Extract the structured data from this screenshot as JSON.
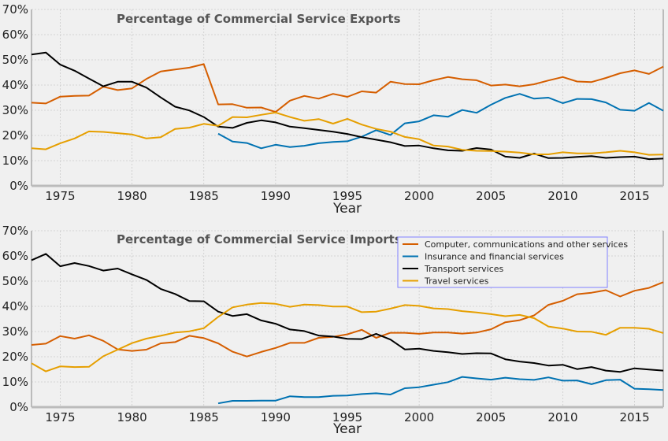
{
  "colors": {
    "computer": "#d55e00",
    "insurance": "#0072b2",
    "transport": "#000000",
    "travel": "#e69f00",
    "background": "#f0f0f0",
    "grid": "#cbcbcb",
    "legend_border": "#8080ff"
  },
  "chart_data": [
    {
      "type": "line",
      "title": "Percentage of Commercial Service Exports",
      "xlabel": "Year",
      "ylabel": "",
      "xlim": [
        1973,
        2017
      ],
      "ylim": [
        0,
        70
      ],
      "xticks": [
        1975,
        1980,
        1985,
        1990,
        1995,
        2000,
        2005,
        2010,
        2015
      ],
      "yticks": [
        0,
        10,
        20,
        30,
        40,
        50,
        60,
        70
      ],
      "ytick_labels": [
        "0%",
        "10%",
        "20%",
        "30%",
        "40%",
        "50%",
        "60%",
        "70%"
      ],
      "grid": true,
      "legend": "none",
      "series": [
        {
          "key": "computer",
          "x": [
            1973,
            1974,
            1975,
            1976,
            1977,
            1978,
            1979,
            1980,
            1981,
            1982,
            1983,
            1984,
            1985,
            1986,
            1987,
            1988,
            1989,
            1990,
            1991,
            1992,
            1993,
            1994,
            1995,
            1996,
            1997,
            1998,
            1999,
            2000,
            2001,
            2002,
            2003,
            2004,
            2005,
            2006,
            2007,
            2008,
            2009,
            2010,
            2011,
            2012,
            2013,
            2014,
            2015,
            2016,
            2017
          ],
          "values": [
            33,
            32.7,
            35.4,
            35.7,
            35.8,
            39.3,
            38,
            38.7,
            42.4,
            45.4,
            46.2,
            46.9,
            48.3,
            32.3,
            32.4,
            31,
            31.1,
            29.3,
            33.8,
            35.7,
            34.6,
            36.5,
            35.3,
            37.5,
            37,
            41.3,
            40.4,
            40.3,
            41.9,
            43.2,
            42.3,
            41.9,
            39.8,
            40.2,
            39.5,
            40.3,
            41.8,
            43.2,
            41.4,
            41.2,
            42.8,
            44.7,
            45.8,
            44.4,
            47.3
          ]
        },
        {
          "key": "insurance",
          "x": [
            1986,
            1987,
            1988,
            1989,
            1990,
            1991,
            1992,
            1993,
            1994,
            1995,
            1996,
            1997,
            1998,
            1999,
            2000,
            2001,
            2002,
            2003,
            2004,
            2005,
            2006,
            2007,
            2008,
            2009,
            2010,
            2011,
            2012,
            2013,
            2014,
            2015,
            2016,
            2017
          ],
          "values": [
            20.7,
            17.6,
            17,
            14.9,
            16.3,
            15.4,
            15.9,
            16.9,
            17.4,
            17.7,
            19.5,
            22.1,
            20.2,
            24.8,
            25.6,
            28,
            27.4,
            30.1,
            29,
            32.2,
            34.9,
            36.5,
            34.6,
            35,
            32.8,
            34.5,
            34.4,
            33.1,
            30.2,
            29.8,
            32.9,
            29.8
          ]
        },
        {
          "key": "transport",
          "x": [
            1973,
            1974,
            1975,
            1976,
            1977,
            1978,
            1979,
            1980,
            1981,
            1982,
            1983,
            1984,
            1985,
            1986,
            1987,
            1988,
            1989,
            1990,
            1991,
            1992,
            1993,
            1994,
            1995,
            1996,
            1997,
            1998,
            1999,
            2000,
            2001,
            2002,
            2003,
            2004,
            2005,
            2006,
            2007,
            2008,
            2009,
            2010,
            2011,
            2012,
            2013,
            2014,
            2015,
            2016,
            2017
          ],
          "values": [
            52.1,
            52.9,
            48.1,
            45.7,
            42.6,
            39.5,
            41.3,
            41.3,
            39,
            35.1,
            31.4,
            29.9,
            27.3,
            23.5,
            23,
            25,
            26,
            25.2,
            23.5,
            22.9,
            22.2,
            21.5,
            20.6,
            19.3,
            18.3,
            17.3,
            15.8,
            16,
            14.9,
            14.1,
            13.9,
            15,
            14.4,
            11.6,
            11.1,
            12.8,
            11,
            11.1,
            11.5,
            11.8,
            11.1,
            11.4,
            11.6,
            10.6,
            10.8
          ]
        },
        {
          "key": "travel",
          "x": [
            1973,
            1974,
            1975,
            1976,
            1977,
            1978,
            1979,
            1980,
            1981,
            1982,
            1983,
            1984,
            1985,
            1986,
            1987,
            1988,
            1989,
            1990,
            1991,
            1992,
            1993,
            1994,
            1995,
            1996,
            1997,
            1998,
            1999,
            2000,
            2001,
            2002,
            2003,
            2004,
            2005,
            2006,
            2007,
            2008,
            2009,
            2010,
            2011,
            2012,
            2013,
            2014,
            2015,
            2016,
            2017
          ],
          "values": [
            14.9,
            14.5,
            16.9,
            18.8,
            21.6,
            21.4,
            20.9,
            20.4,
            18.8,
            19.3,
            22.6,
            23.1,
            24.6,
            23.8,
            27.3,
            27.2,
            28.2,
            29.1,
            27.3,
            25.8,
            26.5,
            24.7,
            26.6,
            24.3,
            22.6,
            21.5,
            19.4,
            18.5,
            16,
            15.6,
            14.3,
            13.9,
            13.8,
            13.6,
            13.2,
            12.5,
            12.5,
            13.3,
            12.9,
            12.9,
            13.3,
            13.9,
            13.3,
            12.3,
            12.4
          ]
        }
      ]
    },
    {
      "type": "line",
      "title": "Percentage of Commercial Service Imports",
      "xlabel": "Year",
      "ylabel": "",
      "xlim": [
        1973,
        2017
      ],
      "ylim": [
        0,
        70
      ],
      "xticks": [
        1975,
        1980,
        1985,
        1990,
        1995,
        2000,
        2005,
        2010,
        2015
      ],
      "yticks": [
        0,
        10,
        20,
        30,
        40,
        50,
        60,
        70
      ],
      "ytick_labels": [
        "0%",
        "10%",
        "20%",
        "30%",
        "40%",
        "50%",
        "60%",
        "70%"
      ],
      "grid": true,
      "legend": "top-right",
      "series": [
        {
          "key": "computer",
          "name": "Computer, communications and other services",
          "x": [
            1973,
            1974,
            1975,
            1976,
            1977,
            1978,
            1979,
            1980,
            1981,
            1982,
            1983,
            1984,
            1985,
            1986,
            1987,
            1988,
            1989,
            1990,
            1991,
            1992,
            1993,
            1994,
            1995,
            1996,
            1997,
            1998,
            1999,
            2000,
            2001,
            2002,
            2003,
            2004,
            2005,
            2006,
            2007,
            2008,
            2009,
            2010,
            2011,
            2012,
            2013,
            2014,
            2015,
            2016,
            2017
          ],
          "values": [
            24.7,
            25.2,
            28.2,
            27.2,
            28.5,
            26.3,
            22.9,
            22.3,
            22.8,
            25.3,
            25.8,
            28.3,
            27.4,
            25.3,
            22,
            20.1,
            21.9,
            23.5,
            25.5,
            25.5,
            27.5,
            27.9,
            28.9,
            30.7,
            27.5,
            29.5,
            29.5,
            29.1,
            29.6,
            29.6,
            29.2,
            29.6,
            30.9,
            33.7,
            34.5,
            36.4,
            40.6,
            42.2,
            44.8,
            45.4,
            46.4,
            43.9,
            46.2,
            47.3,
            49.6
          ]
        },
        {
          "key": "insurance",
          "name": "Insurance and financial services",
          "x": [
            1986,
            1987,
            1988,
            1989,
            1990,
            1991,
            1992,
            1993,
            1994,
            1995,
            1996,
            1997,
            1998,
            1999,
            2000,
            2001,
            2002,
            2003,
            2004,
            2005,
            2006,
            2007,
            2008,
            2009,
            2010,
            2011,
            2012,
            2013,
            2014,
            2015,
            2016,
            2017
          ],
          "values": [
            1.5,
            2.5,
            2.5,
            2.6,
            2.6,
            4.3,
            4,
            4,
            4.5,
            4.6,
            5.2,
            5.5,
            5,
            7.5,
            7.9,
            8.9,
            9.9,
            12,
            11.4,
            10.9,
            11.7,
            11.1,
            10.8,
            11.8,
            10.5,
            10.6,
            9.1,
            10.7,
            10.9,
            7.3,
            7.1,
            6.8
          ]
        },
        {
          "key": "transport",
          "name": "Transport services",
          "x": [
            1973,
            1974,
            1975,
            1976,
            1977,
            1978,
            1979,
            1980,
            1981,
            1982,
            1983,
            1984,
            1985,
            1986,
            1987,
            1988,
            1989,
            1990,
            1991,
            1992,
            1993,
            1994,
            1995,
            1996,
            1997,
            1998,
            1999,
            2000,
            2001,
            2002,
            2003,
            2004,
            2005,
            2006,
            2007,
            2008,
            2009,
            2010,
            2011,
            2012,
            2013,
            2014,
            2015,
            2016,
            2017
          ],
          "values": [
            58.3,
            60.8,
            55.9,
            57.2,
            56,
            54.2,
            55,
            52.7,
            50.5,
            46.9,
            44.9,
            42.1,
            42,
            37.9,
            36.2,
            36.9,
            34.4,
            33.1,
            30.8,
            30.2,
            28.4,
            28,
            27.1,
            27,
            29.1,
            26.8,
            22.9,
            23.2,
            22.3,
            21.8,
            21.1,
            21.4,
            21.3,
            19,
            18.1,
            17.5,
            16.5,
            16.8,
            15.1,
            15.9,
            14.5,
            14,
            15.4,
            14.9,
            14.5
          ]
        },
        {
          "key": "travel",
          "name": "Travel services",
          "x": [
            1973,
            1974,
            1975,
            1976,
            1977,
            1978,
            1979,
            1980,
            1981,
            1982,
            1983,
            1984,
            1985,
            1986,
            1987,
            1988,
            1989,
            1990,
            1991,
            1992,
            1993,
            1994,
            1995,
            1996,
            1997,
            1998,
            1999,
            2000,
            2001,
            2002,
            2003,
            2004,
            2005,
            2006,
            2007,
            2008,
            2009,
            2010,
            2011,
            2012,
            2013,
            2014,
            2015,
            2016,
            2017
          ],
          "values": [
            17.4,
            14.2,
            16.2,
            15.9,
            16,
            20.2,
            22.8,
            25.4,
            27.2,
            28.3,
            29.6,
            30.1,
            31.3,
            35.8,
            39.6,
            40.7,
            41.3,
            41,
            39.8,
            40.7,
            40.5,
            39.9,
            39.9,
            37.7,
            37.9,
            39.1,
            40.5,
            40.2,
            39.2,
            38.9,
            38.1,
            37.6,
            36.9,
            36.1,
            36.6,
            35.3,
            32,
            31.2,
            30,
            29.9,
            28.7,
            31.5,
            31.5,
            31.1,
            29.4
          ]
        }
      ]
    }
  ]
}
